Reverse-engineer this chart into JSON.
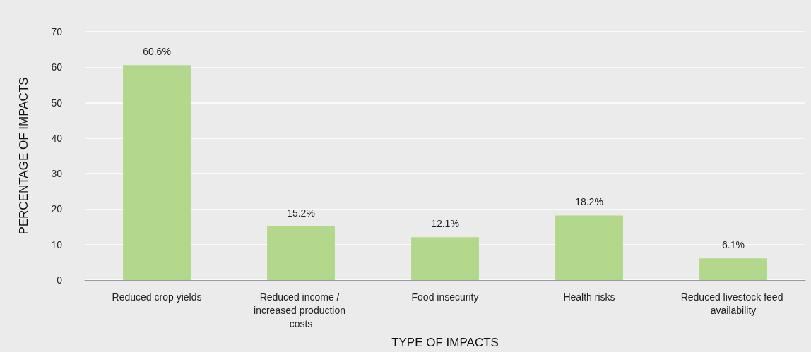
{
  "chart_data": {
    "type": "bar",
    "xlabel": "TYPE OF IMPACTS",
    "ylabel": "PERCENTAGE OF IMPACTS",
    "categories": [
      "Reduced crop yields",
      "Reduced income / increased production costs",
      "Food insecurity",
      "Health risks",
      "Reduced livestock feed availability"
    ],
    "values": [
      60.6,
      15.2,
      12.1,
      18.2,
      6.1
    ],
    "value_labels": [
      "60.6%",
      "15.2%",
      "12.1%",
      "18.2%",
      "6.1%"
    ],
    "color": "#b3d88c",
    "ylim": [
      0,
      70
    ],
    "yticks": [
      0,
      10,
      20,
      30,
      40,
      50,
      60,
      70
    ],
    "grid": "y"
  }
}
